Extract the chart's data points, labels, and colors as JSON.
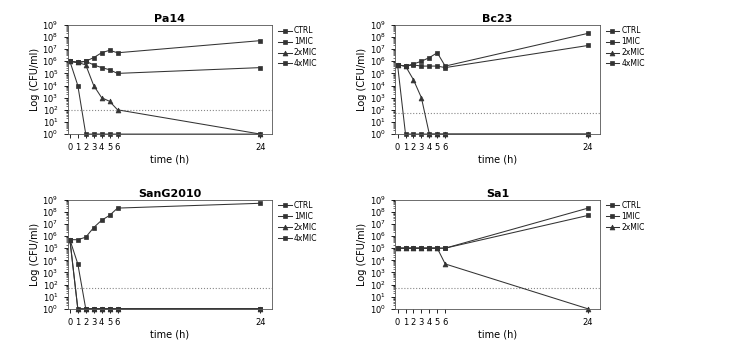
{
  "subplots": [
    {
      "title": "Pa14",
      "time": [
        0,
        1,
        2,
        3,
        4,
        5,
        6,
        24
      ],
      "series": {
        "CTRL": [
          1000000.0,
          800000.0,
          1000000.0,
          2000000.0,
          5000000.0,
          8000000.0,
          5000000.0,
          50000000.0
        ],
        "1MIC": [
          1000000.0,
          800000.0,
          1000000.0,
          500000.0,
          300000.0,
          200000.0,
          100000.0,
          300000.0
        ],
        "2xMIC": [
          1000000.0,
          800000.0,
          500000.0,
          10000.0,
          1000.0,
          500.0,
          100.0,
          1.0
        ],
        "4xMIC": [
          1000000.0,
          10000.0,
          1.0,
          1.0,
          1.0,
          1.0,
          1.0,
          1.0
        ]
      },
      "legend": [
        "CTRL",
        "1MIC",
        "2xMIC",
        "4xMIC"
      ],
      "dashed_y": 100
    },
    {
      "title": "Bc23",
      "time": [
        0,
        1,
        2,
        3,
        4,
        5,
        6,
        24
      ],
      "series": {
        "CTRL": [
          500000.0,
          400000.0,
          600000.0,
          1000000.0,
          2000000.0,
          5000000.0,
          400000.0,
          200000000.0
        ],
        "1MIC": [
          500000.0,
          400000.0,
          500000.0,
          400000.0,
          400000.0,
          400000.0,
          300000.0,
          20000000.0
        ],
        "2xMIC": [
          500000.0,
          400000.0,
          30000.0,
          1000.0,
          1.0,
          1.0,
          1.0,
          1.0
        ],
        "4xMIC": [
          500000.0,
          1.0,
          1.0,
          1.0,
          1.0,
          1.0,
          1.0,
          1.0
        ]
      },
      "legend": [
        "CTRL",
        "1MIC",
        "2xMIC",
        "4xMIC"
      ],
      "dashed_y": 50
    },
    {
      "title": "SanG2010",
      "time": [
        0,
        1,
        2,
        3,
        4,
        5,
        6,
        24
      ],
      "series": {
        "CTRL": [
          500000.0,
          500000.0,
          800000.0,
          5000000.0,
          20000000.0,
          50000000.0,
          200000000.0,
          500000000.0
        ],
        "1MIC": [
          500000.0,
          5000.0,
          1.0,
          1.0,
          1.0,
          1.0,
          1.0,
          1.0
        ],
        "2xMIC": [
          500000.0,
          1.0,
          1.0,
          1.0,
          1.0,
          1.0,
          1.0,
          1.0
        ],
        "4xMIC": [
          500000.0,
          1.0,
          1.0,
          1.0,
          1.0,
          1.0,
          1.0,
          1.0
        ]
      },
      "legend": [
        "CTRL",
        "1MIC",
        "2xMIC",
        "4xMIC"
      ],
      "dashed_y": 50
    },
    {
      "title": "Sa1",
      "time": [
        0,
        1,
        2,
        3,
        4,
        5,
        6,
        24
      ],
      "series": {
        "CTRL": [
          100000.0,
          100000.0,
          100000.0,
          100000.0,
          100000.0,
          100000.0,
          100000.0,
          200000000.0
        ],
        "1MIC": [
          100000.0,
          100000.0,
          100000.0,
          100000.0,
          100000.0,
          100000.0,
          100000.0,
          50000000.0
        ],
        "2xMIC": [
          100000.0,
          100000.0,
          100000.0,
          100000.0,
          100000.0,
          100000.0,
          5000.0,
          1.0
        ]
      },
      "legend": [
        "CTRL",
        "1MIC",
        "2xMIC"
      ],
      "dashed_y": 50
    }
  ],
  "ylim_bottom": 1.0,
  "ylim_top": 1000000000.0,
  "xticks": [
    0,
    1,
    2,
    3,
    4,
    5,
    6,
    24
  ],
  "xlabel": "time (h)",
  "ylabel": "Log (CFU/ml)",
  "bg_color": "#f5f5f5"
}
